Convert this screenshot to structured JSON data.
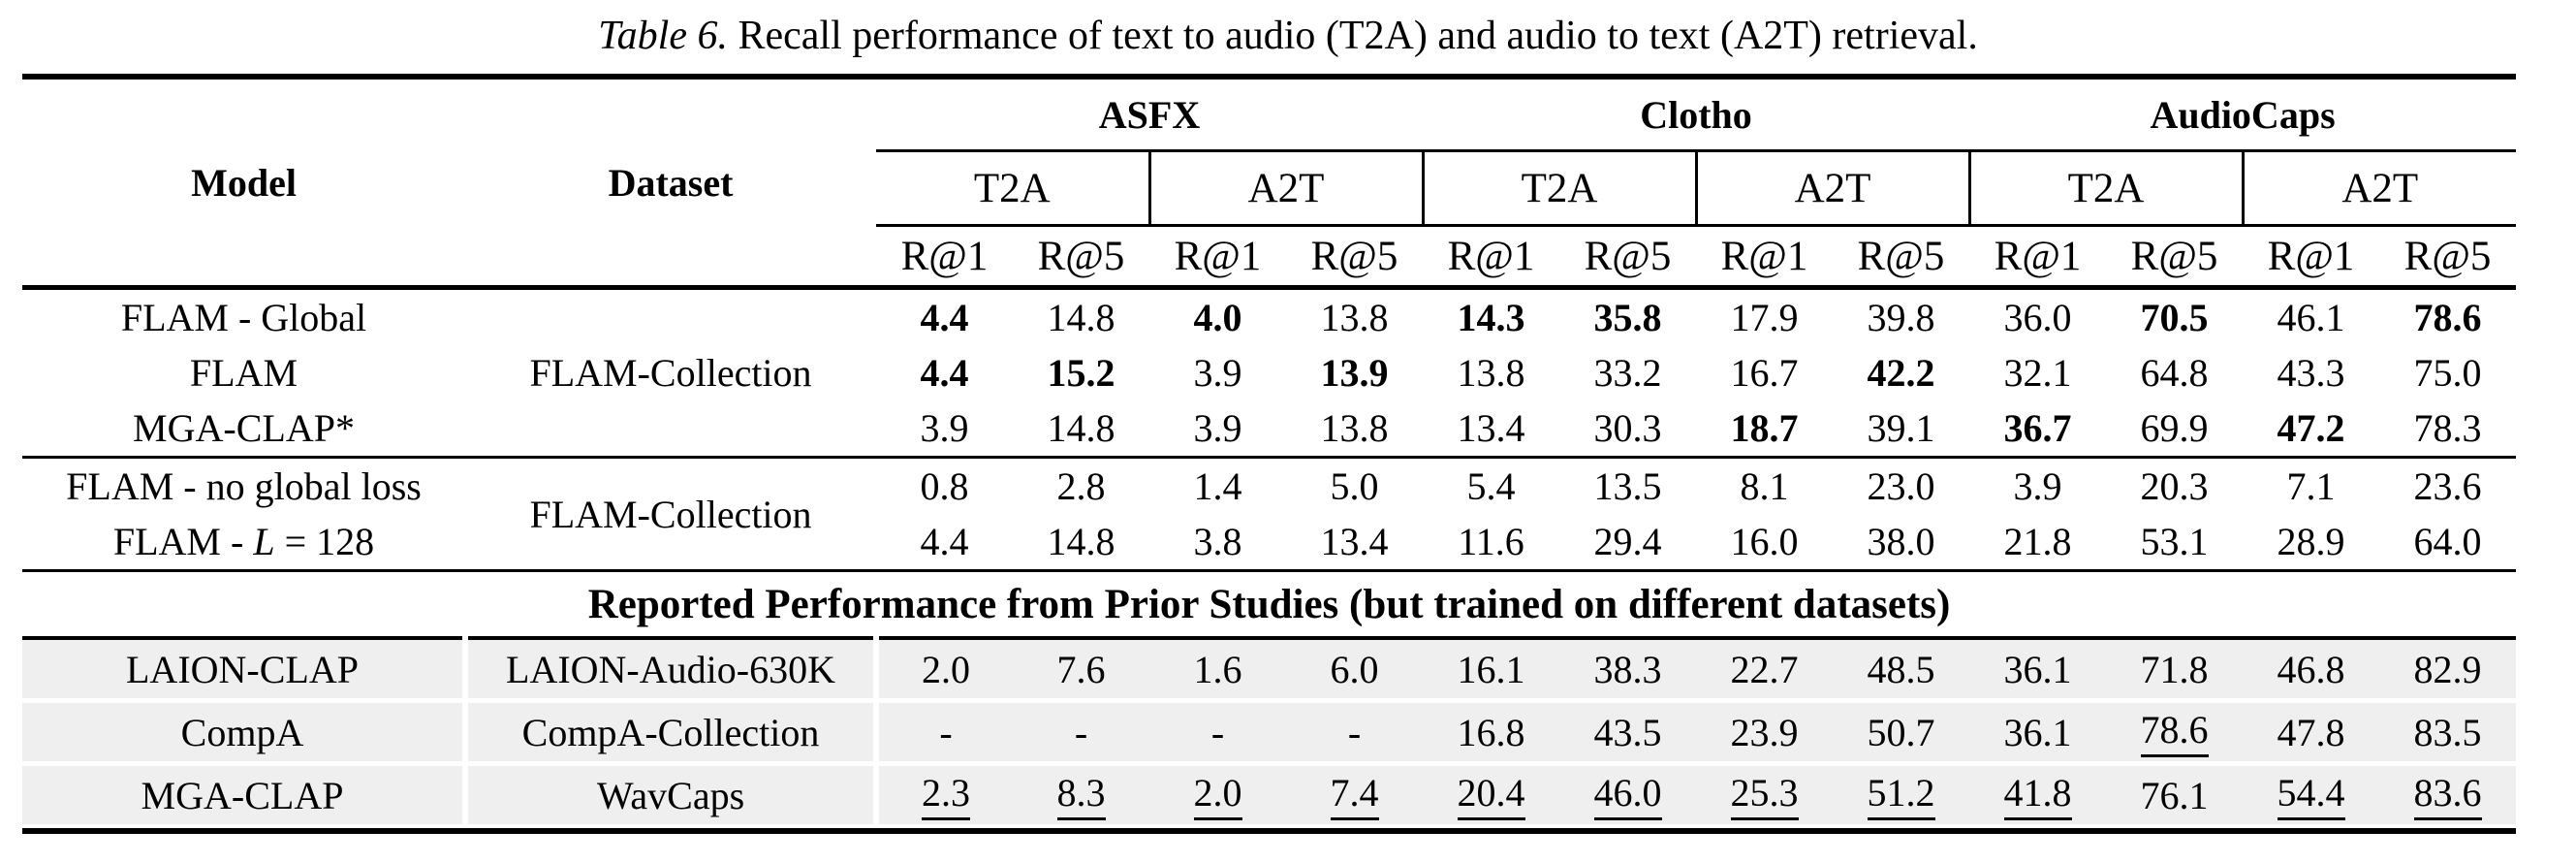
{
  "caption": {
    "label": "Table 6.",
    "text": "Recall performance of text to audio (T2A) and audio to text (A2T) retrieval."
  },
  "header": {
    "model": "Model",
    "dataset": "Dataset",
    "groups": [
      "ASFX",
      "Clotho",
      "AudioCaps"
    ],
    "directions": [
      "T2A",
      "A2T",
      "T2A",
      "A2T",
      "T2A",
      "A2T"
    ],
    "metrics": [
      "R@1",
      "R@5",
      "R@1",
      "R@5",
      "R@1",
      "R@5",
      "R@1",
      "R@5",
      "R@1",
      "R@5",
      "R@1",
      "R@5"
    ]
  },
  "prior_header": "Reported Performance from Prior Studies (but trained on different datasets)",
  "sections": [
    {
      "rows": [
        {
          "model": "FLAM - Global",
          "dataset": "FLAM-Collection",
          "values": [
            "4.4",
            "14.8",
            "4.0",
            "13.8",
            "14.3",
            "35.8",
            "17.9",
            "39.8",
            "36.0",
            "70.5",
            "46.1",
            "78.6"
          ],
          "bold": [
            0,
            2,
            4,
            5,
            9,
            11
          ]
        },
        {
          "model": "FLAM",
          "values": [
            "4.4",
            "15.2",
            "3.9",
            "13.9",
            "13.8",
            "33.2",
            "16.7",
            "42.2",
            "32.1",
            "64.8",
            "43.3",
            "75.0"
          ],
          "bold": [
            0,
            1,
            3,
            7
          ]
        },
        {
          "model": "MGA-CLAP*",
          "values": [
            "3.9",
            "14.8",
            "3.9",
            "13.8",
            "13.4",
            "30.3",
            "18.7",
            "39.1",
            "36.7",
            "69.9",
            "47.2",
            "78.3"
          ],
          "bold": [
            6,
            8,
            10
          ]
        }
      ]
    },
    {
      "rows": [
        {
          "model": "FLAM - no global loss",
          "dataset": "FLAM-Collection",
          "values": [
            "0.8",
            "2.8",
            "1.4",
            "5.0",
            "5.4",
            "13.5",
            "8.1",
            "23.0",
            "3.9",
            "20.3",
            "7.1",
            "23.6"
          ]
        },
        {
          "model_prefix": "FLAM - ",
          "model_math": "L",
          "model_suffix": " = 128",
          "values": [
            "4.4",
            "14.8",
            "3.8",
            "13.4",
            "11.6",
            "29.4",
            "16.0",
            "38.0",
            "21.8",
            "53.1",
            "28.9",
            "64.0"
          ]
        }
      ]
    },
    {
      "rows": [
        {
          "model": "LAION-CLAP",
          "dataset": "LAION-Audio-630K",
          "values": [
            "2.0",
            "7.6",
            "1.6",
            "6.0",
            "16.1",
            "38.3",
            "22.7",
            "48.5",
            "36.1",
            "71.8",
            "46.8",
            "82.9"
          ]
        },
        {
          "model": "CompA",
          "dataset": "CompA-Collection",
          "values": [
            "-",
            "-",
            "-",
            "-",
            "16.8",
            "43.5",
            "23.9",
            "50.7",
            "36.1",
            "78.6",
            "47.8",
            "83.5"
          ],
          "underline": [
            9
          ]
        },
        {
          "model": "MGA-CLAP",
          "dataset": "WavCaps",
          "values": [
            "2.3",
            "8.3",
            "2.0",
            "7.4",
            "20.4",
            "46.0",
            "25.3",
            "51.2",
            "41.8",
            "76.1",
            "54.4",
            "83.6"
          ],
          "underline": [
            0,
            1,
            2,
            3,
            4,
            5,
            6,
            7,
            8,
            10,
            11
          ]
        }
      ]
    }
  ],
  "colors": {
    "row_highlight": "#efefef",
    "rule": "#000000",
    "text": "#000000"
  }
}
